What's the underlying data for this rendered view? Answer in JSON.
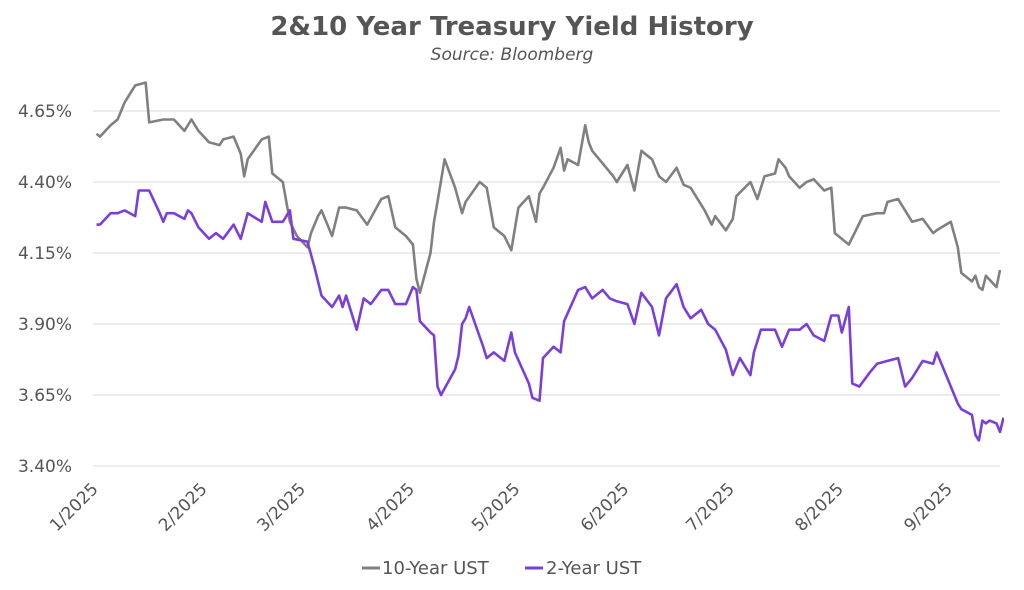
{
  "chart_data": {
    "type": "line",
    "title": "2&10 Year Treasury Yield History",
    "subtitle": "Source: Bloomberg",
    "xlabel": "",
    "ylabel": "",
    "ylim": [
      3.4,
      4.7
    ],
    "y_ticks": [
      "4.65%",
      "4.40%",
      "4.15%",
      "3.90%",
      "3.65%",
      "3.40%"
    ],
    "y_tick_values": [
      4.65,
      4.4,
      4.15,
      3.9,
      3.65,
      3.4
    ],
    "x_ticks": [
      "1/2025",
      "2/2025",
      "3/2025",
      "4/2025",
      "5/2025",
      "6/2025",
      "7/2025",
      "8/2025",
      "9/2025"
    ],
    "x_domain": [
      "2025-01-01",
      "2025-09-16"
    ],
    "grid": "horizontal",
    "legend_position": "bottom",
    "series": [
      {
        "name": "10-Year UST",
        "color": "#808080",
        "points": [
          [
            "2025-01-02",
            4.57
          ],
          [
            "2025-01-03",
            4.56
          ],
          [
            "2025-01-06",
            4.6
          ],
          [
            "2025-01-08",
            4.62
          ],
          [
            "2025-01-10",
            4.68
          ],
          [
            "2025-01-13",
            4.74
          ],
          [
            "2025-01-16",
            4.75
          ],
          [
            "2025-01-17",
            4.61
          ],
          [
            "2025-01-21",
            4.62
          ],
          [
            "2025-01-24",
            4.62
          ],
          [
            "2025-01-27",
            4.58
          ],
          [
            "2025-01-29",
            4.62
          ],
          [
            "2025-01-31",
            4.58
          ],
          [
            "2025-02-03",
            4.54
          ],
          [
            "2025-02-06",
            4.53
          ],
          [
            "2025-02-07",
            4.55
          ],
          [
            "2025-02-10",
            4.56
          ],
          [
            "2025-02-12",
            4.5
          ],
          [
            "2025-02-13",
            4.42
          ],
          [
            "2025-02-14",
            4.48
          ],
          [
            "2025-02-18",
            4.55
          ],
          [
            "2025-02-20",
            4.56
          ],
          [
            "2025-02-21",
            4.43
          ],
          [
            "2025-02-24",
            4.4
          ],
          [
            "2025-02-26",
            4.26
          ],
          [
            "2025-02-28",
            4.21
          ],
          [
            "2025-03-03",
            4.17
          ],
          [
            "2025-03-04",
            4.22
          ],
          [
            "2025-03-06",
            4.28
          ],
          [
            "2025-03-07",
            4.3
          ],
          [
            "2025-03-10",
            4.21
          ],
          [
            "2025-03-12",
            4.31
          ],
          [
            "2025-03-14",
            4.31
          ],
          [
            "2025-03-17",
            4.3
          ],
          [
            "2025-03-20",
            4.25
          ],
          [
            "2025-03-24",
            4.34
          ],
          [
            "2025-03-26",
            4.35
          ],
          [
            "2025-03-28",
            4.24
          ],
          [
            "2025-03-31",
            4.21
          ],
          [
            "2025-04-02",
            4.18
          ],
          [
            "2025-04-03",
            4.06
          ],
          [
            "2025-04-04",
            4.01
          ],
          [
            "2025-04-07",
            4.15
          ],
          [
            "2025-04-08",
            4.26
          ],
          [
            "2025-04-09",
            4.33
          ],
          [
            "2025-04-11",
            4.48
          ],
          [
            "2025-04-14",
            4.38
          ],
          [
            "2025-04-16",
            4.29
          ],
          [
            "2025-04-17",
            4.33
          ],
          [
            "2025-04-21",
            4.4
          ],
          [
            "2025-04-23",
            4.38
          ],
          [
            "2025-04-24",
            4.31
          ],
          [
            "2025-04-25",
            4.24
          ],
          [
            "2025-04-28",
            4.21
          ],
          [
            "2025-04-30",
            4.16
          ],
          [
            "2025-05-02",
            4.31
          ],
          [
            "2025-05-05",
            4.35
          ],
          [
            "2025-05-07",
            4.26
          ],
          [
            "2025-05-08",
            4.36
          ],
          [
            "2025-05-09",
            4.38
          ],
          [
            "2025-05-12",
            4.45
          ],
          [
            "2025-05-14",
            4.52
          ],
          [
            "2025-05-15",
            4.44
          ],
          [
            "2025-05-16",
            4.48
          ],
          [
            "2025-05-19",
            4.46
          ],
          [
            "2025-05-21",
            4.6
          ],
          [
            "2025-05-22",
            4.54
          ],
          [
            "2025-05-23",
            4.51
          ],
          [
            "2025-05-27",
            4.45
          ],
          [
            "2025-05-29",
            4.42
          ],
          [
            "2025-05-30",
            4.4
          ],
          [
            "2025-06-02",
            4.46
          ],
          [
            "2025-06-04",
            4.37
          ],
          [
            "2025-06-06",
            4.51
          ],
          [
            "2025-06-09",
            4.48
          ],
          [
            "2025-06-11",
            4.42
          ],
          [
            "2025-06-13",
            4.4
          ],
          [
            "2025-06-16",
            4.45
          ],
          [
            "2025-06-18",
            4.39
          ],
          [
            "2025-06-20",
            4.38
          ],
          [
            "2025-06-24",
            4.3
          ],
          [
            "2025-06-26",
            4.25
          ],
          [
            "2025-06-27",
            4.28
          ],
          [
            "2025-06-30",
            4.23
          ],
          [
            "2025-07-02",
            4.27
          ],
          [
            "2025-07-03",
            4.35
          ],
          [
            "2025-07-07",
            4.4
          ],
          [
            "2025-07-09",
            4.34
          ],
          [
            "2025-07-11",
            4.42
          ],
          [
            "2025-07-14",
            4.43
          ],
          [
            "2025-07-15",
            4.48
          ],
          [
            "2025-07-17",
            4.45
          ],
          [
            "2025-07-18",
            4.42
          ],
          [
            "2025-07-21",
            4.38
          ],
          [
            "2025-07-23",
            4.4
          ],
          [
            "2025-07-25",
            4.41
          ],
          [
            "2025-07-28",
            4.37
          ],
          [
            "2025-07-30",
            4.38
          ],
          [
            "2025-07-31",
            4.22
          ],
          [
            "2025-08-01",
            4.21
          ],
          [
            "2025-08-04",
            4.18
          ],
          [
            "2025-08-06",
            4.23
          ],
          [
            "2025-08-08",
            4.28
          ],
          [
            "2025-08-12",
            4.29
          ],
          [
            "2025-08-14",
            4.29
          ],
          [
            "2025-08-15",
            4.33
          ],
          [
            "2025-08-18",
            4.34
          ],
          [
            "2025-08-20",
            4.3
          ],
          [
            "2025-08-22",
            4.26
          ],
          [
            "2025-08-25",
            4.27
          ],
          [
            "2025-08-28",
            4.22
          ],
          [
            "2025-08-29",
            4.23
          ],
          [
            "2025-09-02",
            4.26
          ],
          [
            "2025-09-04",
            4.17
          ],
          [
            "2025-09-05",
            4.08
          ],
          [
            "2025-09-08",
            4.05
          ],
          [
            "2025-09-09",
            4.07
          ],
          [
            "2025-09-10",
            4.03
          ],
          [
            "2025-09-11",
            4.02
          ],
          [
            "2025-09-12",
            4.07
          ],
          [
            "2025-09-15",
            4.03
          ],
          [
            "2025-09-16",
            4.09
          ]
        ]
      },
      {
        "name": "2-Year UST",
        "color": "#7a3fd9",
        "points": [
          [
            "2025-01-02",
            4.25
          ],
          [
            "2025-01-03",
            4.25
          ],
          [
            "2025-01-06",
            4.29
          ],
          [
            "2025-01-08",
            4.29
          ],
          [
            "2025-01-10",
            4.3
          ],
          [
            "2025-01-13",
            4.28
          ],
          [
            "2025-01-14",
            4.37
          ],
          [
            "2025-01-17",
            4.37
          ],
          [
            "2025-01-20",
            4.29
          ],
          [
            "2025-01-21",
            4.26
          ],
          [
            "2025-01-22",
            4.29
          ],
          [
            "2025-01-24",
            4.29
          ],
          [
            "2025-01-27",
            4.27
          ],
          [
            "2025-01-28",
            4.3
          ],
          [
            "2025-01-29",
            4.29
          ],
          [
            "2025-01-31",
            4.24
          ],
          [
            "2025-02-03",
            4.2
          ],
          [
            "2025-02-05",
            4.22
          ],
          [
            "2025-02-07",
            4.2
          ],
          [
            "2025-02-10",
            4.25
          ],
          [
            "2025-02-12",
            4.2
          ],
          [
            "2025-02-14",
            4.29
          ],
          [
            "2025-02-18",
            4.26
          ],
          [
            "2025-02-19",
            4.33
          ],
          [
            "2025-02-21",
            4.26
          ],
          [
            "2025-02-24",
            4.26
          ],
          [
            "2025-02-26",
            4.3
          ],
          [
            "2025-02-27",
            4.2
          ],
          [
            "2025-03-03",
            4.19
          ],
          [
            "2025-03-05",
            4.1
          ],
          [
            "2025-03-07",
            4.0
          ],
          [
            "2025-03-10",
            3.96
          ],
          [
            "2025-03-12",
            4.0
          ],
          [
            "2025-03-13",
            3.96
          ],
          [
            "2025-03-14",
            4.0
          ],
          [
            "2025-03-17",
            3.88
          ],
          [
            "2025-03-19",
            3.99
          ],
          [
            "2025-03-21",
            3.97
          ],
          [
            "2025-03-24",
            4.02
          ],
          [
            "2025-03-26",
            4.02
          ],
          [
            "2025-03-28",
            3.97
          ],
          [
            "2025-03-31",
            3.97
          ],
          [
            "2025-04-02",
            4.03
          ],
          [
            "2025-04-03",
            4.02
          ],
          [
            "2025-04-04",
            3.91
          ],
          [
            "2025-04-07",
            3.87
          ],
          [
            "2025-04-08",
            3.86
          ],
          [
            "2025-04-09",
            3.68
          ],
          [
            "2025-04-10",
            3.65
          ],
          [
            "2025-04-14",
            3.74
          ],
          [
            "2025-04-15",
            3.79
          ],
          [
            "2025-04-16",
            3.9
          ],
          [
            "2025-04-17",
            3.92
          ],
          [
            "2025-04-18",
            3.96
          ],
          [
            "2025-04-22",
            3.82
          ],
          [
            "2025-04-23",
            3.78
          ],
          [
            "2025-04-25",
            3.8
          ],
          [
            "2025-04-28",
            3.77
          ],
          [
            "2025-04-30",
            3.87
          ],
          [
            "2025-05-01",
            3.8
          ],
          [
            "2025-05-05",
            3.69
          ],
          [
            "2025-05-06",
            3.64
          ],
          [
            "2025-05-08",
            3.63
          ],
          [
            "2025-05-09",
            3.78
          ],
          [
            "2025-05-12",
            3.82
          ],
          [
            "2025-05-14",
            3.8
          ],
          [
            "2025-05-15",
            3.91
          ],
          [
            "2025-05-19",
            4.02
          ],
          [
            "2025-05-21",
            4.03
          ],
          [
            "2025-05-23",
            3.99
          ],
          [
            "2025-05-26",
            4.02
          ],
          [
            "2025-05-28",
            3.99
          ],
          [
            "2025-05-30",
            3.98
          ],
          [
            "2025-06-02",
            3.97
          ],
          [
            "2025-06-04",
            3.9
          ],
          [
            "2025-06-06",
            4.01
          ],
          [
            "2025-06-09",
            3.96
          ],
          [
            "2025-06-11",
            3.86
          ],
          [
            "2025-06-13",
            3.99
          ],
          [
            "2025-06-16",
            4.04
          ],
          [
            "2025-06-18",
            3.96
          ],
          [
            "2025-06-20",
            3.92
          ],
          [
            "2025-06-23",
            3.95
          ],
          [
            "2025-06-25",
            3.9
          ],
          [
            "2025-06-27",
            3.88
          ],
          [
            "2025-06-30",
            3.81
          ],
          [
            "2025-07-02",
            3.72
          ],
          [
            "2025-07-04",
            3.78
          ],
          [
            "2025-07-07",
            3.72
          ],
          [
            "2025-07-08",
            3.8
          ],
          [
            "2025-07-10",
            3.88
          ],
          [
            "2025-07-14",
            3.88
          ],
          [
            "2025-07-16",
            3.82
          ],
          [
            "2025-07-18",
            3.88
          ],
          [
            "2025-07-21",
            3.88
          ],
          [
            "2025-07-23",
            3.9
          ],
          [
            "2025-07-25",
            3.86
          ],
          [
            "2025-07-28",
            3.84
          ],
          [
            "2025-07-30",
            3.93
          ],
          [
            "2025-08-01",
            3.93
          ],
          [
            "2025-08-02",
            3.87
          ],
          [
            "2025-08-04",
            3.96
          ],
          [
            "2025-08-05",
            3.69
          ],
          [
            "2025-08-07",
            3.68
          ],
          [
            "2025-08-10",
            3.73
          ],
          [
            "2025-08-12",
            3.76
          ],
          [
            "2025-08-15",
            3.77
          ],
          [
            "2025-08-18",
            3.78
          ],
          [
            "2025-08-20",
            3.68
          ],
          [
            "2025-08-22",
            3.71
          ],
          [
            "2025-08-25",
            3.77
          ],
          [
            "2025-08-28",
            3.76
          ],
          [
            "2025-08-29",
            3.8
          ],
          [
            "2025-09-01",
            3.71
          ],
          [
            "2025-09-02",
            3.68
          ],
          [
            "2025-09-04",
            3.62
          ],
          [
            "2025-09-05",
            3.6
          ],
          [
            "2025-09-08",
            3.58
          ],
          [
            "2025-09-09",
            3.51
          ],
          [
            "2025-09-10",
            3.49
          ],
          [
            "2025-09-11",
            3.56
          ],
          [
            "2025-09-12",
            3.55
          ],
          [
            "2025-09-13",
            3.56
          ],
          [
            "2025-09-15",
            3.55
          ],
          [
            "2025-09-16",
            3.52
          ],
          [
            "2025-09-17",
            3.57
          ]
        ]
      }
    ]
  }
}
